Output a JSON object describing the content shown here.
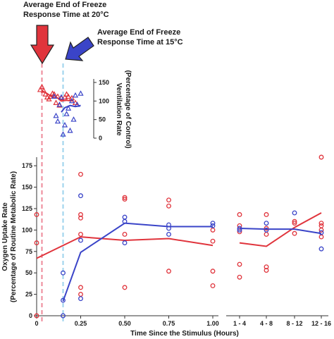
{
  "chart_data": {
    "type": "scatter",
    "annotations": {
      "red_line1": "Average End of Freeze",
      "red_line2": "Response Time at 20°C",
      "blue_line1": "Average End of Freeze",
      "blue_line2": "Response Time at 15°C"
    },
    "colors": {
      "red": "#e0343c",
      "blue": "#3a44c8",
      "red_dash": "#ee8a9a",
      "blue_dash": "#9cd3ec"
    },
    "freeze_end_20C_hours": 0.03,
    "freeze_end_15C_hours": 0.15,
    "ventilation": {
      "ylabel_line1": "Ventilation Rate",
      "ylabel_line2": "(Percentage of Control)",
      "yticks": [
        "0",
        "50",
        "100",
        "150"
      ],
      "ylim": [
        0,
        150
      ],
      "red_points": [
        [
          0.02,
          130
        ],
        [
          0.03,
          138
        ],
        [
          0.04,
          128
        ],
        [
          0.05,
          118
        ],
        [
          0.06,
          110
        ],
        [
          0.07,
          105
        ],
        [
          0.08,
          112
        ],
        [
          0.09,
          120
        ],
        [
          0.1,
          118
        ],
        [
          0.11,
          95
        ],
        [
          0.12,
          112
        ],
        [
          0.13,
          88
        ],
        [
          0.14,
          108
        ],
        [
          0.16,
          110
        ],
        [
          0.17,
          118
        ],
        [
          0.18,
          112
        ],
        [
          0.2,
          108
        ],
        [
          0.22,
          95
        ]
      ],
      "red_line": [
        [
          0.03,
          128
        ],
        [
          0.06,
          120
        ],
        [
          0.09,
          110
        ],
        [
          0.12,
          108
        ],
        [
          0.14,
          100
        ],
        [
          0.17,
          102
        ],
        [
          0.21,
          100
        ]
      ],
      "blue_points": [
        [
          0.1,
          112
        ],
        [
          0.11,
          60
        ],
        [
          0.12,
          45
        ],
        [
          0.13,
          90
        ],
        [
          0.14,
          110
        ],
        [
          0.15,
          10
        ],
        [
          0.16,
          35
        ],
        [
          0.17,
          65
        ],
        [
          0.18,
          80
        ],
        [
          0.19,
          20
        ],
        [
          0.2,
          100
        ],
        [
          0.21,
          50
        ],
        [
          0.22,
          115
        ],
        [
          0.23,
          90
        ],
        [
          0.25,
          120
        ]
      ],
      "blue_line": [
        [
          0.14,
          70
        ],
        [
          0.16,
          82
        ],
        [
          0.19,
          88
        ],
        [
          0.22,
          85
        ],
        [
          0.25,
          88
        ]
      ]
    },
    "oxygen": {
      "xlabel": "Time Since the Stimulus (Hours)",
      "ylabel_line1": "Oxygen Uptake Rate",
      "ylabel_line2": "(Percentage of Routine Metabolic Rate)",
      "yticks": [
        "0",
        "25",
        "50",
        "75",
        "100",
        "125",
        "150",
        "175"
      ],
      "ylim": [
        0,
        185
      ],
      "xticks_continuous": [
        "0",
        "0.25",
        "0.50",
        "0.75",
        "1.00"
      ],
      "xlim_continuous": [
        0,
        1.0
      ],
      "categories_binned": [
        "1 - 4",
        "4 - 8",
        "8 - 12",
        "12 - 16"
      ],
      "red_points_continuous": [
        [
          0,
          0
        ],
        [
          0,
          85
        ],
        [
          0,
          118
        ],
        [
          0.25,
          25
        ],
        [
          0.25,
          33
        ],
        [
          0.25,
          95
        ],
        [
          0.25,
          114
        ],
        [
          0.25,
          118
        ],
        [
          0.25,
          165
        ],
        [
          0.5,
          33
        ],
        [
          0.5,
          95
        ],
        [
          0.5,
          136
        ],
        [
          0.5,
          138
        ],
        [
          0.75,
          52
        ],
        [
          0.75,
          128
        ],
        [
          0.75,
          135
        ],
        [
          1.0,
          35
        ],
        [
          1.0,
          52
        ],
        [
          1.0,
          87
        ],
        [
          1.0,
          100
        ]
      ],
      "blue_points_continuous": [
        [
          0.15,
          0
        ],
        [
          0.15,
          18
        ],
        [
          0.15,
          50
        ],
        [
          0.25,
          20
        ],
        [
          0.25,
          88
        ],
        [
          0.25,
          140
        ],
        [
          0.5,
          85
        ],
        [
          0.5,
          110
        ],
        [
          0.5,
          115
        ],
        [
          0.75,
          95
        ],
        [
          0.75,
          102
        ],
        [
          0.75,
          106
        ],
        [
          1.0,
          105
        ],
        [
          1.0,
          108
        ]
      ],
      "red_line_continuous": [
        [
          0,
          67
        ],
        [
          0.25,
          92
        ],
        [
          0.5,
          88
        ],
        [
          0.75,
          90
        ],
        [
          1.0,
          82
        ]
      ],
      "blue_line_continuous": [
        [
          0.15,
          17
        ],
        [
          0.25,
          74
        ],
        [
          0.5,
          108
        ],
        [
          0.75,
          104
        ],
        [
          1.0,
          104
        ]
      ],
      "red_points_binned": [
        [
          0,
          45
        ],
        [
          0,
          60
        ],
        [
          0,
          98
        ],
        [
          0,
          105
        ],
        [
          0,
          118
        ],
        [
          1,
          53
        ],
        [
          1,
          57
        ],
        [
          1,
          95
        ],
        [
          1,
          102
        ],
        [
          1,
          118
        ],
        [
          2,
          96
        ],
        [
          2,
          108
        ],
        [
          2,
          110
        ],
        [
          3,
          92
        ],
        [
          3,
          100
        ],
        [
          3,
          105
        ],
        [
          3,
          108
        ],
        [
          3,
          185
        ]
      ],
      "blue_points_binned": [
        [
          0,
          100
        ],
        [
          0,
          102
        ],
        [
          1,
          100
        ],
        [
          1,
          108
        ],
        [
          2,
          120
        ],
        [
          3,
          78
        ],
        [
          3,
          97
        ]
      ],
      "red_line_binned": [
        [
          0,
          85
        ],
        [
          1,
          81
        ],
        [
          2,
          103
        ],
        [
          3,
          120
        ]
      ],
      "blue_line_binned": [
        [
          0,
          102
        ],
        [
          1,
          101
        ],
        [
          2,
          101
        ],
        [
          3,
          96
        ]
      ]
    }
  }
}
